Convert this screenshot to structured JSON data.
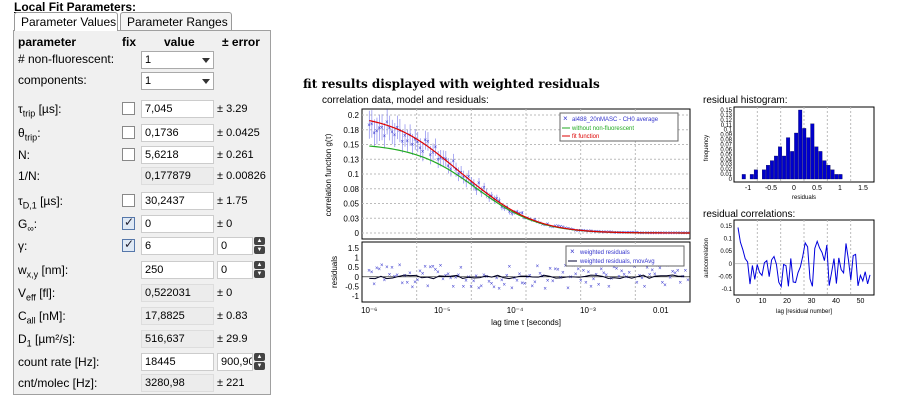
{
  "header": {
    "title_underlined": "Local",
    "title_rest": "Fit Parameters:"
  },
  "tabs": [
    "Parameter Values",
    "Parameter Ranges"
  ],
  "columns": {
    "parameter": "parameter",
    "fix": "fix",
    "value": "value",
    "error": "± error"
  },
  "selects": [
    {
      "label": "# non-fluorescent:",
      "value": "1"
    },
    {
      "label": "components:",
      "value": "1"
    }
  ],
  "params": [
    {
      "name": "τ",
      "sub": "trip",
      "unit": " [µs]:",
      "fixed": false,
      "value": "7,045",
      "error": "± 3.29"
    },
    {
      "name": "θ",
      "sub": "trip",
      "unit": ":",
      "fixed": false,
      "value": "0,1736",
      "error": "± 0.0425"
    },
    {
      "name": "N:",
      "sub": "",
      "unit": "",
      "fixed": false,
      "value": "5,6218",
      "error": "± 0.261"
    },
    {
      "name": "1/N:",
      "sub": "",
      "unit": "",
      "fixed": null,
      "value": "0,177879",
      "error": "± 0.00826"
    },
    {
      "name": "τ",
      "sub": "D,1",
      "unit": " [µs]:",
      "fixed": false,
      "value": "30,2437",
      "error": "± 1.75"
    },
    {
      "name": "G",
      "sub": "∞",
      "unit": ":",
      "fixed": true,
      "value": "0",
      "error": "± 0"
    },
    {
      "name": "γ:",
      "sub": "",
      "unit": "",
      "fixed": true,
      "value": "6",
      "error": "0",
      "spin": true
    },
    {
      "name": "w",
      "sub": "x,y",
      "unit": " [nm]:",
      "fixed": null,
      "value": "250",
      "error": "0",
      "spin": true,
      "editable": true
    },
    {
      "name": "V",
      "sub": "eff",
      "unit": " [fl]:",
      "fixed": null,
      "value": "0,522031",
      "error": "± 0"
    },
    {
      "name": "C",
      "sub": "all",
      "unit": " [nM]:",
      "fixed": null,
      "value": "17,8825",
      "error": "± 0.83"
    },
    {
      "name": "D",
      "sub": "1",
      "unit": " [µm²/s]:",
      "fixed": null,
      "value": "516,637",
      "error": "± 29.9"
    },
    {
      "name": "count rate [Hz]:",
      "sub": "",
      "unit": "",
      "fixed": null,
      "value": "18445",
      "error": "900,90",
      "spin": true,
      "editable": true
    },
    {
      "name": "cnt/molec [Hz]:",
      "sub": "",
      "unit": "",
      "fixed": null,
      "value": "3280,98",
      "error": "± 221"
    }
  ],
  "fit_results_title": "fit results displayed with weighted residuals",
  "main_plot": {
    "title": "correlation data, model and residuals:",
    "ylabel": "correlation function g(τ)",
    "yticks": [
      "0.2",
      "0.18",
      "0.15",
      "0.13",
      "0.1",
      "0.08",
      "0.05",
      "0.03",
      "0"
    ],
    "legend": [
      "al488_20nMASC - CH0 average",
      "without non-fluorescent",
      "fit function"
    ],
    "colors": {
      "data": "#3333cc",
      "model": "#22aa22",
      "fit": "#dd0000"
    }
  },
  "resid_plot": {
    "ylabel": "residuals",
    "yticks": [
      "1.5",
      "1",
      "0.5",
      "0",
      "-0.5",
      "-1"
    ],
    "legend": [
      "weighted residuals",
      "weighted residuals, movAvg"
    ],
    "xticks": [
      "10⁻⁶",
      "10⁻⁵",
      "10⁻⁴",
      "10⁻³",
      "0.01"
    ],
    "xlabel": "lag time τ [seconds]"
  },
  "histogram": {
    "title": "residual histogram:",
    "ylabel": "frequency",
    "xlabel": "residuals",
    "yticks": [
      "0.15",
      "0.13",
      "0.12",
      "0.11",
      "0.1",
      "0.09",
      "0.08",
      "0.07",
      "0.06",
      "0.05",
      "0.04",
      "0.03",
      "0.02",
      "0.01",
      "0"
    ],
    "xticks": [
      "-1",
      "-0.5",
      "0",
      "0.5",
      "1",
      "1.5"
    ]
  },
  "autocorr": {
    "title": "residual correlations:",
    "ylabel": "autocorrelation",
    "xlabel": "lag [residual number]",
    "yticks": [
      "0.15",
      "0.1",
      "0.05",
      "0",
      "-0.05",
      "-0.1"
    ],
    "xticks": [
      "0",
      "10",
      "20",
      "30",
      "40",
      "50"
    ]
  }
}
